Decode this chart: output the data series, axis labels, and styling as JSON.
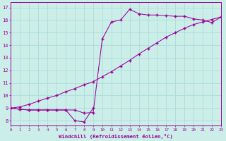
{
  "line1_x": [
    0,
    1,
    2,
    3,
    4,
    5,
    6,
    7,
    8,
    9
  ],
  "line1_y": [
    9.0,
    8.9,
    8.85,
    8.85,
    8.85,
    8.85,
    8.85,
    8.0,
    7.9,
    9.0
  ],
  "line2_x": [
    0,
    1,
    2,
    3,
    4,
    5,
    6,
    7,
    8,
    9,
    10,
    11,
    12,
    13,
    14,
    15,
    16,
    17,
    18,
    19,
    20,
    21,
    22,
    23
  ],
  "line2_y": [
    9.0,
    9.1,
    9.3,
    9.55,
    9.8,
    10.0,
    10.3,
    10.55,
    10.85,
    11.1,
    11.5,
    11.9,
    12.35,
    12.8,
    13.3,
    13.75,
    14.2,
    14.65,
    15.0,
    15.35,
    15.65,
    15.85,
    16.05,
    16.25
  ],
  "line3_x": [
    0,
    1,
    2,
    3,
    4,
    5,
    6,
    7,
    8,
    9,
    10,
    11,
    12,
    13,
    14,
    15,
    16,
    17,
    18,
    19,
    20,
    21,
    22,
    23
  ],
  "line3_y": [
    9.0,
    8.9,
    8.85,
    8.85,
    8.85,
    8.85,
    8.85,
    8.85,
    8.6,
    8.65,
    14.5,
    15.85,
    16.0,
    16.85,
    16.5,
    16.4,
    16.4,
    16.35,
    16.3,
    16.3,
    16.1,
    16.0,
    15.8,
    16.25
  ],
  "color": "#990099",
  "bg_color": "#cceee8",
  "grid_color": "#aaddda",
  "xlabel": "Windchill (Refroidissement éolien,°C)",
  "xlim": [
    0,
    23
  ],
  "ylim": [
    7.6,
    17.4
  ],
  "yticks": [
    8,
    9,
    10,
    11,
    12,
    13,
    14,
    15,
    16,
    17
  ],
  "xticks": [
    0,
    1,
    2,
    3,
    4,
    5,
    6,
    7,
    8,
    9,
    10,
    11,
    12,
    13,
    14,
    15,
    16,
    17,
    18,
    19,
    20,
    21,
    22,
    23
  ]
}
